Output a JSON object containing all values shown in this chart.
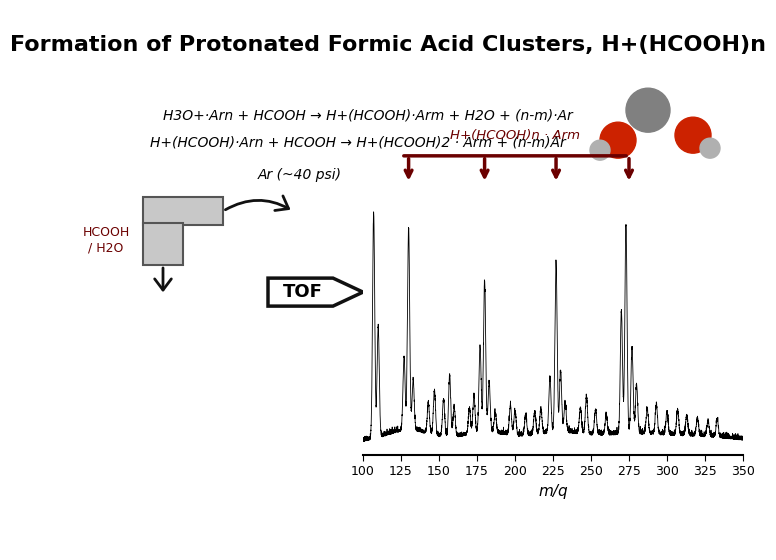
{
  "title": "Formation of Protonated Formic Acid Clusters, H+(HCOOH)n",
  "title_bg": "#aab4e8",
  "title_fontsize": 16,
  "eq1": "H3O+·Arn + HCOOH → H+(HCOOH)·Arm + H2O + (n-m)·Ar",
  "eq2": "H+(HCOOH)·Arn + HCOOH → H+(HCOOH)2 · Arm + (n-m)Ar",
  "ar_label": "Ar (~40 psi)",
  "hcooh_label": "HCOOH\n/ H2O",
  "tof_label": "TOF",
  "cluster_label": "H+(HCOOH)n · Arm",
  "mq_label": "m/q",
  "x_ticks": [
    100,
    125,
    150,
    175,
    200,
    225,
    250,
    275,
    300,
    325,
    350
  ],
  "bg_color": "#ffffff",
  "spectrum_color": "#000000",
  "arrow_color": "#6b0000",
  "bracket_color": "#6b0000",
  "hcooh_color": "#6b0000",
  "box_bg": "#c8c8c8"
}
